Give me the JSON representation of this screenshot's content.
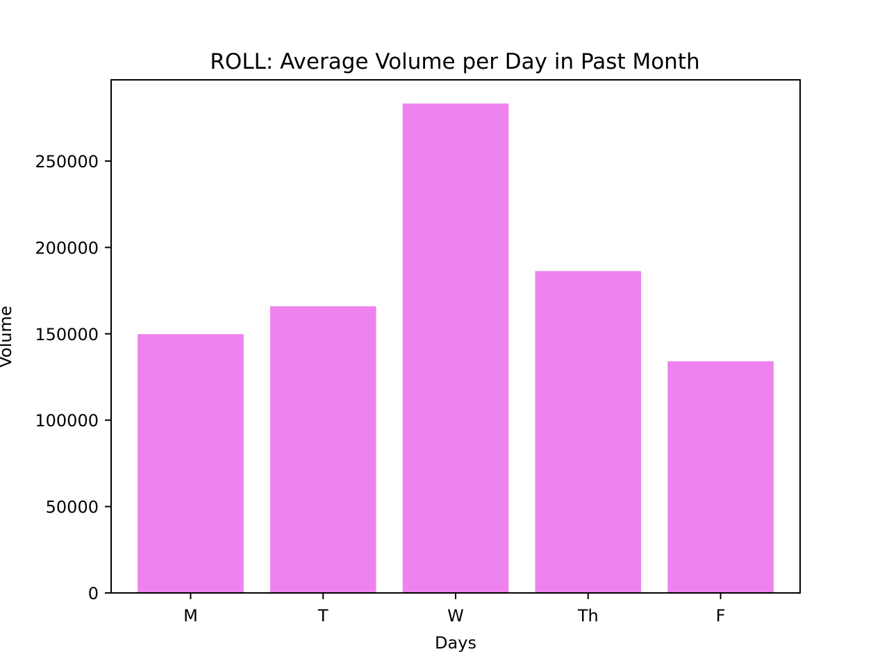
{
  "chart_data": {
    "type": "bar",
    "title": "ROLL: Average Volume per Day in Past Month",
    "xlabel": "Days",
    "ylabel": "Volume",
    "categories": [
      "M",
      "T",
      "W",
      "Th",
      "F"
    ],
    "values": [
      149800,
      165900,
      283300,
      186300,
      134100
    ],
    "ylim": [
      0,
      297000
    ],
    "yticks": [
      0,
      50000,
      100000,
      150000,
      200000,
      250000
    ],
    "bar_color": "#ee82ee",
    "grid": false,
    "legend": "none"
  }
}
